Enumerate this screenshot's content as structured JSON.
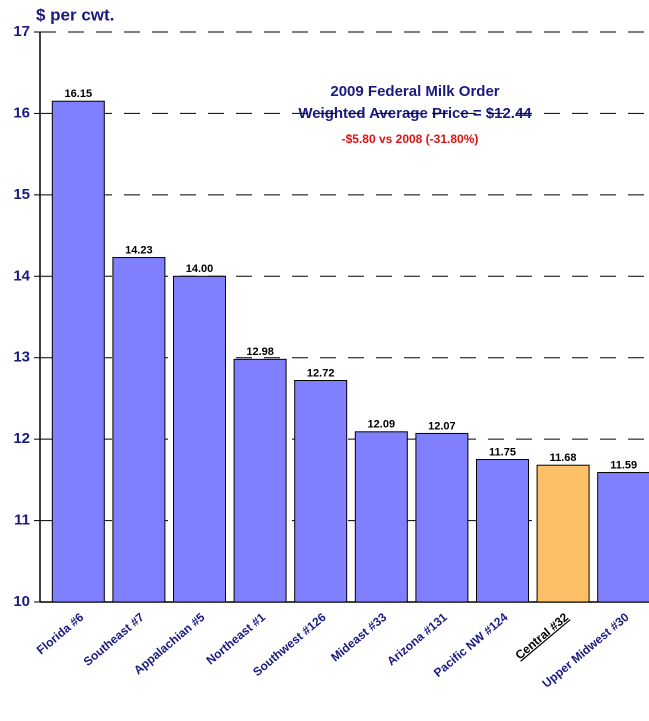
{
  "chart_data": {
    "type": "bar",
    "ylabel": "$ per cwt.",
    "annotations": [
      "2009 Federal Milk Order",
      "Weighted Average Price = $12.44",
      "-$5.80 vs 2008 (-31.80%)"
    ],
    "categories": [
      "Florida #6",
      "Southeast #7",
      "Appalachian #5",
      "Northeast #1",
      "Southwest #126",
      "Mideast #33",
      "Arizona #131",
      "Pacific NW #124",
      "Central #32",
      "Upper Midwest #30"
    ],
    "values": [
      16.15,
      14.23,
      14,
      12.98,
      12.72,
      12.09,
      12.07,
      11.75,
      11.68,
      11.59
    ],
    "value_labels": [
      "16.15",
      "14.23",
      "14.00",
      "12.98",
      "12.72",
      "12.09",
      "12.07",
      "11.75",
      "11.68",
      "11.59"
    ],
    "color": "#8080ff",
    "highlight_color": "#ffbf66",
    "bar_colors": [
      "#8080ff",
      "#8080ff",
      "#8080ff",
      "#8080ff",
      "#8080ff",
      "#8080ff",
      "#8080ff",
      "#8080ff",
      "#ffbf66",
      "#8080ff"
    ],
    "ylim": [
      10,
      17
    ],
    "yticks": [
      10,
      11,
      12,
      13,
      14,
      15,
      16,
      17
    ],
    "grid": true
  }
}
